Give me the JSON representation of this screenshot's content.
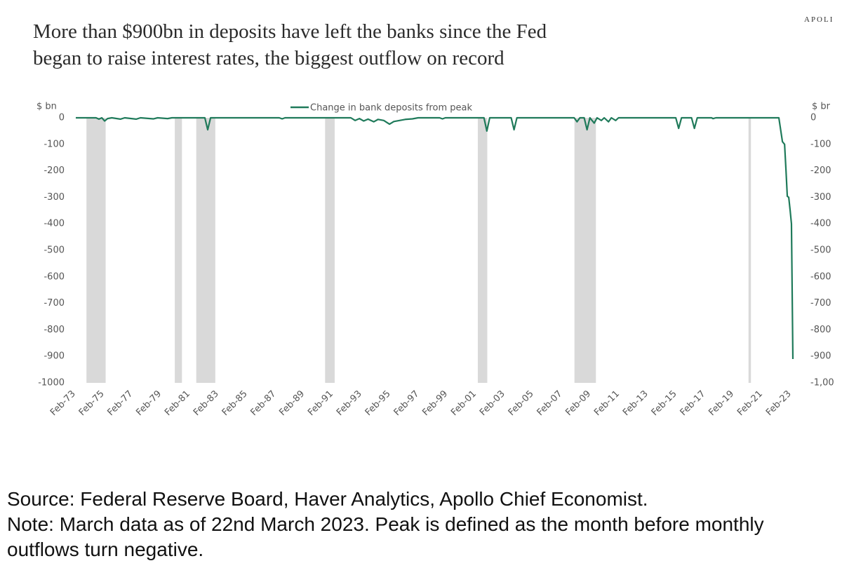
{
  "brand": "APOLI",
  "footer": {
    "source": "Source: Federal Reserve Board, Haver Analytics, Apollo Chief Economist.",
    "note": "Note: March data as of 22nd March 2023. Peak is defined as the month before monthly outflows turn negative."
  },
  "chart_data": {
    "type": "line",
    "title": [
      "More than $900bn in deposits have left the banks since the Fed",
      "began to raise interest rates, the biggest outflow on record"
    ],
    "y_label": "$ bn",
    "y2_label": "$ br",
    "xlim": [
      1973.083,
      2023.18
    ],
    "ylim": [
      -1000,
      0
    ],
    "y2lim": [
      -1000,
      0
    ],
    "yticks": [
      0,
      -100,
      -200,
      -300,
      -400,
      -500,
      -600,
      -700,
      -800,
      -900,
      -1000
    ],
    "y2ticks": [
      0,
      -100,
      -200,
      -300,
      -400,
      -500,
      -600,
      -700,
      -800,
      -900,
      {
        "value": -1000,
        "label": "-1,00"
      }
    ],
    "xticks": [
      {
        "value": 1973.083,
        "label": "Feb-73"
      },
      {
        "value": 1975.083,
        "label": "Feb-75"
      },
      {
        "value": 1977.083,
        "label": "Feb-77"
      },
      {
        "value": 1979.083,
        "label": "Feb-79"
      },
      {
        "value": 1981.083,
        "label": "Feb-81"
      },
      {
        "value": 1983.083,
        "label": "Feb-83"
      },
      {
        "value": 1985.083,
        "label": "Feb-85"
      },
      {
        "value": 1987.083,
        "label": "Feb-87"
      },
      {
        "value": 1989.083,
        "label": "Feb-89"
      },
      {
        "value": 1991.083,
        "label": "Feb-91"
      },
      {
        "value": 1993.083,
        "label": "Feb-93"
      },
      {
        "value": 1995.083,
        "label": "Feb-95"
      },
      {
        "value": 1997.083,
        "label": "Feb-97"
      },
      {
        "value": 1999.083,
        "label": "Feb-99"
      },
      {
        "value": 2001.083,
        "label": "Feb-01"
      },
      {
        "value": 2003.083,
        "label": "Feb-03"
      },
      {
        "value": 2005.083,
        "label": "Feb-05"
      },
      {
        "value": 2007.083,
        "label": "Feb-07"
      },
      {
        "value": 2009.083,
        "label": "Feb-09"
      },
      {
        "value": 2011.083,
        "label": "Feb-11"
      },
      {
        "value": 2013.083,
        "label": "Feb-13"
      },
      {
        "value": 2015.083,
        "label": "Feb-15"
      },
      {
        "value": 2017.083,
        "label": "Feb-17"
      },
      {
        "value": 2019.083,
        "label": "Feb-19"
      },
      {
        "value": 2021.083,
        "label": "Feb-21"
      },
      {
        "value": 2023.083,
        "label": "Feb-23"
      }
    ],
    "shading": [
      [
        1973.83,
        1975.17
      ],
      [
        1980.0,
        1980.5
      ],
      [
        1981.5,
        1982.83
      ],
      [
        1990.5,
        1991.17
      ],
      [
        2001.17,
        2001.83
      ],
      [
        2007.92,
        2009.42
      ],
      [
        2020.08,
        2020.25
      ]
    ],
    "shading_color": "#d9d9d9",
    "x": [
      1973.083,
      1974.5,
      1974.7,
      1974.9,
      1975.1,
      1975.3,
      1975.6,
      1976.2,
      1976.5,
      1977.3,
      1977.6,
      1978.5,
      1978.8,
      1979.5,
      1979.8,
      1982.1,
      1982.3,
      1982.5,
      1987.3,
      1987.5,
      1987.7,
      1992.3,
      1992.6,
      1992.9,
      1993.2,
      1993.5,
      1993.9,
      1994.2,
      1994.6,
      1995.0,
      1995.3,
      1995.7,
      1996.1,
      1996.6,
      1997.0,
      1998.5,
      1998.7,
      1998.9,
      2001.6,
      2001.8,
      2002.0,
      2003.5,
      2003.7,
      2003.9,
      2007.9,
      2008.1,
      2008.3,
      2008.6,
      2008.8,
      2009.0,
      2009.3,
      2009.5,
      2009.8,
      2010.0,
      2010.3,
      2010.5,
      2010.8,
      2011.0,
      2015.0,
      2015.2,
      2015.4,
      2016.1,
      2016.3,
      2016.5,
      2017.5,
      2017.6,
      2017.8,
      2022.2,
      2022.45,
      2022.6,
      2022.7,
      2022.79,
      2022.89,
      2022.99,
      2023.08,
      2023.18
    ],
    "series": [
      {
        "name": "Change in bank deposits from peak",
        "color": "#1f7a5a",
        "values": [
          0,
          0,
          -5,
          0,
          -12,
          -3,
          0,
          -5,
          0,
          -5,
          0,
          -4,
          0,
          -3,
          0,
          0,
          -45,
          0,
          0,
          -4,
          0,
          0,
          -10,
          -3,
          -12,
          -5,
          -15,
          -6,
          -10,
          -24,
          -14,
          -10,
          -6,
          -4,
          0,
          0,
          -4,
          0,
          0,
          -50,
          0,
          0,
          -45,
          0,
          0,
          -15,
          0,
          0,
          -45,
          0,
          -20,
          0,
          -10,
          0,
          -15,
          0,
          -10,
          0,
          0,
          -40,
          0,
          0,
          -40,
          0,
          0,
          -3,
          0,
          0,
          -90,
          -100,
          -200,
          -296,
          -300,
          -350,
          -400,
          -910
        ]
      }
    ]
  }
}
